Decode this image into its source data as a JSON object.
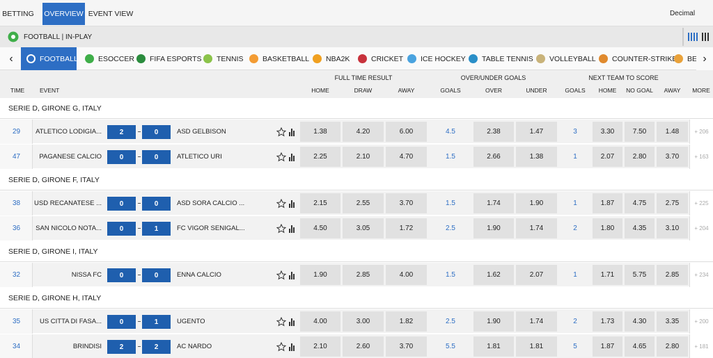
{
  "nav": {
    "tabs": [
      "BETTING",
      "OVERVIEW",
      "EVENT VIEW"
    ],
    "odds_format": "Decimal"
  },
  "breadcrumb": "FOOTBALL | IN-PLAY",
  "sports": [
    "FOOTBALL",
    "ESOCCER",
    "FIFA ESPORTS",
    "TENNIS",
    "BASKETBALL",
    "NBA2K",
    "CRICKET",
    "ICE HOCKEY",
    "TABLE TENNIS",
    "VOLLEYBALL",
    "COUNTER-STRIKE",
    "BEA"
  ],
  "header": {
    "groups": [
      "FULL TIME RESULT",
      "OVER/UNDER GOALS",
      "NEXT TEAM TO SCORE"
    ],
    "columns": [
      "TIME",
      "EVENT",
      "HOME",
      "DRAW",
      "AWAY",
      "GOALS",
      "OVER",
      "UNDER",
      "GOALS",
      "HOME",
      "NO GOAL",
      "AWAY",
      "MORE"
    ]
  },
  "leagues": [
    {
      "name": "SERIE D, GIRONE G, ITALY",
      "events": [
        {
          "time": "29",
          "home": "ATLETICO LODIGIA...",
          "home_score": "2",
          "away_score": "0",
          "away": "ASD GELBISON",
          "odds": [
            "1.38",
            "4.20",
            "6.00",
            "4.5",
            "2.38",
            "1.47",
            "3",
            "3.30",
            "7.50",
            "1.48"
          ],
          "more": "+ 206"
        },
        {
          "time": "47",
          "home": "PAGANESE CALCIO",
          "home_score": "0",
          "away_score": "0",
          "away": "ATLETICO URI",
          "odds": [
            "2.25",
            "2.10",
            "4.70",
            "1.5",
            "2.66",
            "1.38",
            "1",
            "2.07",
            "2.80",
            "3.70"
          ],
          "more": "+ 163"
        }
      ]
    },
    {
      "name": "SERIE D, GIRONE F, ITALY",
      "events": [
        {
          "time": "38",
          "home": "USD RECANATESE ...",
          "home_score": "0",
          "away_score": "0",
          "away": "ASD SORA CALCIO ...",
          "odds": [
            "2.15",
            "2.55",
            "3.70",
            "1.5",
            "1.74",
            "1.90",
            "1",
            "1.87",
            "4.75",
            "2.75"
          ],
          "more": "+ 225"
        },
        {
          "time": "36",
          "home": "SAN NICOLO NOTA...",
          "home_score": "0",
          "away_score": "1",
          "away": "FC VIGOR SENIGAL...",
          "odds": [
            "4.50",
            "3.05",
            "1.72",
            "2.5",
            "1.90",
            "1.74",
            "2",
            "1.80",
            "4.35",
            "3.10"
          ],
          "more": "+ 204"
        }
      ]
    },
    {
      "name": "SERIE D, GIRONE I, ITALY",
      "events": [
        {
          "time": "32",
          "home": "NISSA FC",
          "home_score": "0",
          "away_score": "0",
          "away": "ENNA CALCIO",
          "odds": [
            "1.90",
            "2.85",
            "4.00",
            "1.5",
            "1.62",
            "2.07",
            "1",
            "1.71",
            "5.75",
            "2.85"
          ],
          "more": "+ 234"
        }
      ]
    },
    {
      "name": "SERIE D, GIRONE H, ITALY",
      "events": [
        {
          "time": "35",
          "home": "US CITTA DI FASA...",
          "home_score": "0",
          "away_score": "1",
          "away": "UGENTO",
          "odds": [
            "4.00",
            "3.00",
            "1.82",
            "2.5",
            "1.90",
            "1.74",
            "2",
            "1.73",
            "4.30",
            "3.35"
          ],
          "more": "+ 200"
        },
        {
          "time": "34",
          "home": "BRINDISI",
          "home_score": "2",
          "away_score": "2",
          "away": "AC NARDO",
          "odds": [
            "2.10",
            "2.60",
            "3.70",
            "5.5",
            "1.81",
            "1.81",
            "5",
            "1.87",
            "4.65",
            "2.80"
          ],
          "more": "+ 181"
        }
      ]
    }
  ]
}
